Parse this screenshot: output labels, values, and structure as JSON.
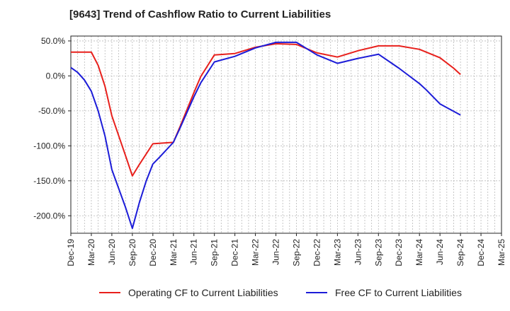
{
  "chart_data": {
    "type": "line",
    "title": "[9643]  Trend of Cashflow Ratio to Current Liabilities",
    "xlabel": "",
    "ylabel": "",
    "x": [
      "Dec-19",
      "Jan-20",
      "Feb-20",
      "Mar-20",
      "Apr-20",
      "May-20",
      "Jun-20",
      "Jul-20",
      "Aug-20",
      "Sep-20",
      "Oct-20",
      "Nov-20",
      "Dec-20",
      "Jan-21",
      "Feb-21",
      "Mar-21",
      "Apr-21",
      "May-21",
      "Jun-21",
      "Jul-21",
      "Aug-21",
      "Sep-21",
      "Oct-21",
      "Nov-21",
      "Dec-21",
      "Jan-22",
      "Feb-22",
      "Mar-22",
      "Apr-22",
      "May-22",
      "Jun-22",
      "Jul-22",
      "Aug-22",
      "Sep-22",
      "Oct-22",
      "Nov-22",
      "Dec-22",
      "Jan-23",
      "Feb-23",
      "Mar-23",
      "Apr-23",
      "May-23",
      "Jun-23",
      "Jul-23",
      "Aug-23",
      "Sep-23",
      "Oct-23",
      "Nov-23",
      "Dec-23",
      "Jan-24",
      "Feb-24",
      "Mar-24",
      "Apr-24",
      "May-24",
      "Jun-24",
      "Jul-24",
      "Aug-24",
      "Sep-24",
      "Oct-24",
      "Nov-24",
      "Dec-24",
      "Jan-25",
      "Feb-25",
      "Mar-25"
    ],
    "x_tick_labels": [
      "Dec-19",
      "Mar-20",
      "Jun-20",
      "Sep-20",
      "Dec-20",
      "Mar-21",
      "Jun-21",
      "Sep-21",
      "Dec-21",
      "Mar-22",
      "Jun-22",
      "Sep-22",
      "Dec-22",
      "Mar-23",
      "Jun-23",
      "Sep-23",
      "Dec-23",
      "Mar-24",
      "Jun-24",
      "Sep-24",
      "Dec-24",
      "Mar-25"
    ],
    "y_tick_labels": [
      "50.0%",
      "0.0%",
      "-50.0%",
      "-100.0%",
      "-150.0%",
      "-200.0%"
    ],
    "y_ticks": [
      50,
      0,
      -50,
      -100,
      -150,
      -200
    ],
    "ylim": [
      -225,
      57
    ],
    "grid": true,
    "legend_position": "bottom",
    "series": [
      {
        "name": "Operating CF to Current Liabilities",
        "color": "#e8201c",
        "points": [
          [
            0,
            34
          ],
          [
            3,
            34
          ],
          [
            4,
            15
          ],
          [
            5,
            -15
          ],
          [
            6,
            -57
          ],
          [
            8,
            -114
          ],
          [
            9,
            -143
          ],
          [
            10,
            -127
          ],
          [
            12,
            -97
          ],
          [
            15,
            -95
          ],
          [
            16,
            -72
          ],
          [
            17,
            -48
          ],
          [
            18,
            -24
          ],
          [
            19,
            -1
          ],
          [
            21,
            30
          ],
          [
            24,
            32
          ],
          [
            27,
            41
          ],
          [
            30,
            46
          ],
          [
            33,
            45
          ],
          [
            36,
            33
          ],
          [
            39,
            27
          ],
          [
            42,
            36
          ],
          [
            45,
            43
          ],
          [
            48,
            43
          ],
          [
            51,
            38
          ],
          [
            54,
            26
          ],
          [
            56,
            11
          ],
          [
            57,
            2
          ]
        ]
      },
      {
        "name": "Free CF to Current Liabilities",
        "color": "#1c1cd8",
        "points": [
          [
            0,
            12
          ],
          [
            1,
            5
          ],
          [
            2,
            -6
          ],
          [
            3,
            -22
          ],
          [
            4,
            -50
          ],
          [
            5,
            -86
          ],
          [
            6,
            -134
          ],
          [
            7,
            -161
          ],
          [
            8,
            -188
          ],
          [
            9,
            -218
          ],
          [
            10,
            -182
          ],
          [
            11,
            -151
          ],
          [
            12,
            -126
          ],
          [
            13,
            -116
          ],
          [
            15,
            -95
          ],
          [
            16,
            -74
          ],
          [
            17,
            -52
          ],
          [
            18,
            -30
          ],
          [
            19,
            -10
          ],
          [
            21,
            20
          ],
          [
            24,
            28
          ],
          [
            27,
            40
          ],
          [
            30,
            48
          ],
          [
            33,
            48
          ],
          [
            36,
            30
          ],
          [
            39,
            18
          ],
          [
            42,
            25
          ],
          [
            45,
            31
          ],
          [
            48,
            11
          ],
          [
            51,
            -11
          ],
          [
            52,
            -20
          ],
          [
            54,
            -40
          ],
          [
            57,
            -56
          ]
        ]
      }
    ]
  },
  "colors": {
    "red_series": "#e8201c",
    "blue_series": "#1c1cd8",
    "grid": "#b9b9b9",
    "axis": "#222222"
  }
}
